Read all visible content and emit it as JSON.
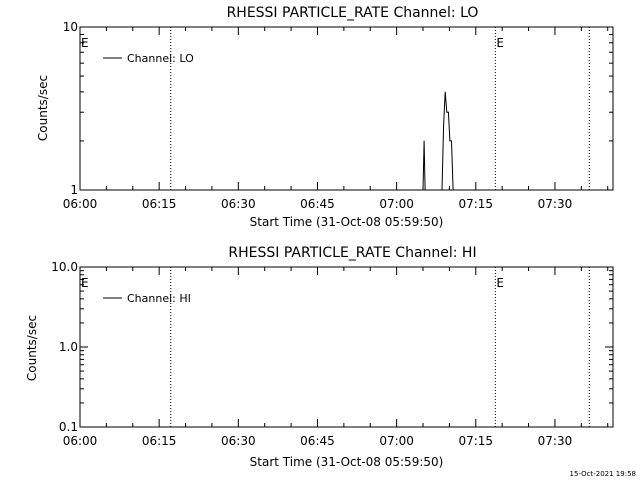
{
  "footer": {
    "timestamp": "15-Oct-2021 19:58"
  },
  "chart_data": [
    {
      "type": "line",
      "title": "RHESSI PARTICLE_RATE Channel: LO",
      "xlabel": "Start Time (31-Oct-08 05:59:50)",
      "ylabel": "Counts/sec",
      "x_ticks": [
        "06:00",
        "06:15",
        "06:30",
        "06:45",
        "07:00",
        "07:15",
        "07:30"
      ],
      "x_tick_minutes": [
        0,
        15,
        30,
        45,
        60,
        75,
        90
      ],
      "xlim_minutes": [
        0,
        101
      ],
      "y_scale": "log",
      "ylim": [
        1,
        10
      ],
      "y_ticks": [
        "1",
        "10"
      ],
      "y_tick_values": [
        1,
        10
      ],
      "legend": {
        "position": "top-left",
        "entries": [
          {
            "label": "Channel: LO"
          }
        ]
      },
      "markers": [
        {
          "time": "06:17:10",
          "minute": 17.2,
          "label": ""
        },
        {
          "time": "07:18:40",
          "minute": 78.7,
          "label": "E"
        },
        {
          "time": "07:36:30",
          "minute": 96.5,
          "label": ""
        }
      ],
      "start_marker_label": "E",
      "series": [
        {
          "name": "Channel: LO",
          "points": [
            {
              "minute": 65.0,
              "value": 1
            },
            {
              "minute": 65.2,
              "value": 2
            },
            {
              "minute": 65.4,
              "value": 1
            },
            {
              "minute": 68.6,
              "value": 1
            },
            {
              "minute": 68.9,
              "value": 2.5
            },
            {
              "minute": 69.2,
              "value": 4
            },
            {
              "minute": 69.5,
              "value": 3
            },
            {
              "minute": 69.8,
              "value": 3
            },
            {
              "minute": 70.1,
              "value": 2
            },
            {
              "minute": 70.4,
              "value": 2
            },
            {
              "minute": 70.7,
              "value": 1
            }
          ]
        }
      ]
    },
    {
      "type": "line",
      "title": "RHESSI PARTICLE_RATE Channel: HI",
      "xlabel": "Start Time (31-Oct-08 05:59:50)",
      "ylabel": "Counts/sec",
      "x_ticks": [
        "06:00",
        "06:15",
        "06:30",
        "06:45",
        "07:00",
        "07:15",
        "07:30"
      ],
      "x_tick_minutes": [
        0,
        15,
        30,
        45,
        60,
        75,
        90
      ],
      "xlim_minutes": [
        0,
        101
      ],
      "y_scale": "log",
      "ylim": [
        0.1,
        10
      ],
      "y_ticks": [
        "0.1",
        "1.0",
        "10.0"
      ],
      "y_tick_values": [
        0.1,
        1,
        10
      ],
      "legend": {
        "position": "top-left",
        "entries": [
          {
            "label": "Channel: HI"
          }
        ]
      },
      "markers": [
        {
          "time": "06:17:10",
          "minute": 17.2,
          "label": ""
        },
        {
          "time": "07:18:40",
          "minute": 78.7,
          "label": "E"
        },
        {
          "time": "07:36:30",
          "minute": 96.5,
          "label": ""
        }
      ],
      "start_marker_label": "E",
      "series": [
        {
          "name": "Channel: HI",
          "points": []
        }
      ]
    }
  ]
}
